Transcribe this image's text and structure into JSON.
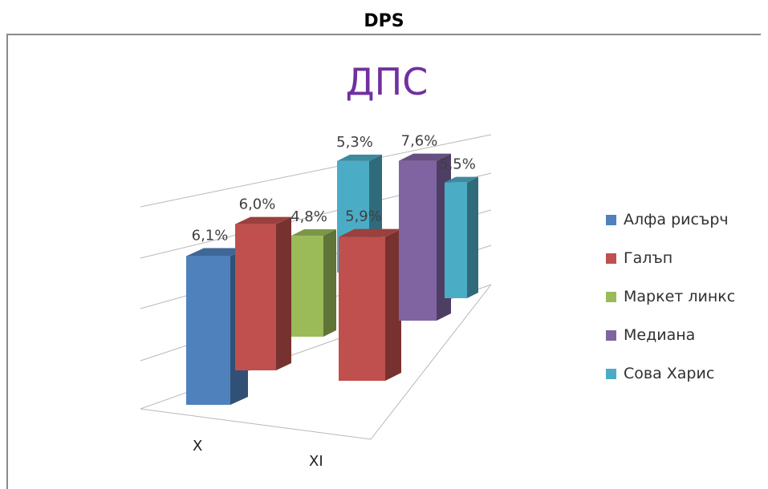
{
  "page": {
    "title": "DPS"
  },
  "chart_data": {
    "type": "bar",
    "subtype": "3d-clustered-column",
    "title": "ДПС",
    "title_color": "#7030a0",
    "categories": [
      "X",
      "XI"
    ],
    "series": [
      {
        "name": "Алфа рисърч",
        "color": "#4f81bd",
        "values": [
          6.1,
          null
        ],
        "labels": [
          "6,1%",
          null
        ]
      },
      {
        "name": "Галъп",
        "color": "#c0504d",
        "values": [
          6.0,
          5.9
        ],
        "labels": [
          "6,0%",
          "5,9%"
        ]
      },
      {
        "name": "Маркет линкс",
        "color": "#9bbb59",
        "values": [
          4.8,
          null
        ],
        "labels": [
          "4,8%",
          null
        ]
      },
      {
        "name": "Медиана",
        "color": "#8064a2",
        "values": [
          null,
          7.6
        ],
        "labels": [
          null,
          "7,6%"
        ]
      },
      {
        "name": "Сова Харис",
        "color": "#4bacc6",
        "values": [
          null,
          5.5
        ],
        "labels": [
          null,
          "5,5%"
        ]
      },
      {
        "name": "Сова Харис",
        "color": "#4bacc6",
        "values": [
          5.3,
          null
        ],
        "labels": [
          "5,3%",
          null
        ],
        "note_hidden": true
      }
    ],
    "legend_position": "right",
    "grid": true
  }
}
